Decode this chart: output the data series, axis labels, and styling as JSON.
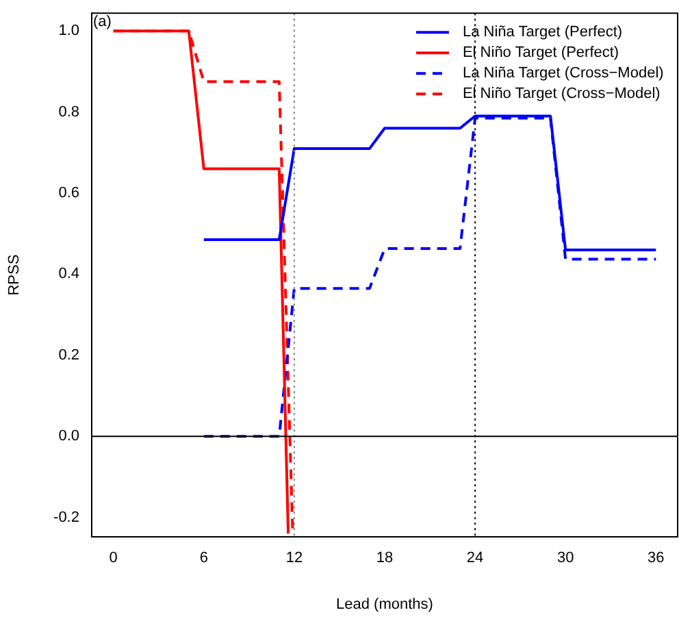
{
  "chart_data": {
    "type": "line",
    "xlabel": "Lead (months)",
    "ylabel": "RPSS",
    "annotations": [
      "(a)"
    ],
    "xlim": [
      -1.44,
      37.44
    ],
    "xticks": [
      0,
      6,
      12,
      18,
      24,
      30,
      36
    ],
    "ylim": [
      -0.248,
      1.044
    ],
    "yticks": [
      {
        "value": -0.2,
        "label": "-0.2"
      },
      {
        "value": 0,
        "label": "0.0"
      },
      {
        "value": 0.2,
        "label": "0.2"
      },
      {
        "value": 0.4,
        "label": "0.4"
      },
      {
        "value": 0.6,
        "label": "0.6"
      },
      {
        "value": 0.8,
        "label": "0.8"
      },
      {
        "value": 1,
        "label": "1.0"
      }
    ],
    "grid": false,
    "legend": "top right",
    "marker": "none",
    "ref_lines": [
      {
        "axis": "x",
        "value": 12,
        "color": "#808080",
        "line_style": "dotted"
      },
      {
        "axis": "x",
        "value": 24,
        "color": "#000000",
        "line_style": "dotted"
      },
      {
        "axis": "y",
        "value": 0,
        "color": "#000000",
        "line_style": "solid"
      }
    ],
    "series": [
      {
        "name": "La Niña Target (Perfect)",
        "color": "#0000ff",
        "line_style": "solid",
        "x": [
          6,
          11,
          12,
          17,
          18,
          23,
          24,
          29,
          30,
          36
        ],
        "values": [
          0.485,
          0.485,
          0.71,
          0.71,
          0.76,
          0.76,
          0.79,
          0.79,
          0.46,
          0.46
        ]
      },
      {
        "name": "El Niño Target (Perfect)",
        "color": "#ff0000",
        "line_style": "solid",
        "x": [
          0,
          5,
          6,
          11,
          11.6
        ],
        "values": [
          1,
          1,
          0.66,
          0.66,
          -0.24
        ]
      },
      {
        "name": "La Niña Target (Cross−Model)",
        "color": "#0000ff",
        "line_style": "dashed",
        "x": [
          6,
          11,
          12,
          17,
          18,
          23,
          24,
          29,
          30,
          36
        ],
        "values": [
          0,
          0,
          0.365,
          0.365,
          0.463,
          0.463,
          0.785,
          0.785,
          0.437,
          0.437
        ]
      },
      {
        "name": "El Niño Target (Cross−Model)",
        "color": "#ff0000",
        "line_style": "dashed",
        "x": [
          0,
          5,
          6,
          11,
          11.9
        ],
        "values": [
          1,
          1,
          0.875,
          0.875,
          -0.24
        ]
      }
    ]
  }
}
